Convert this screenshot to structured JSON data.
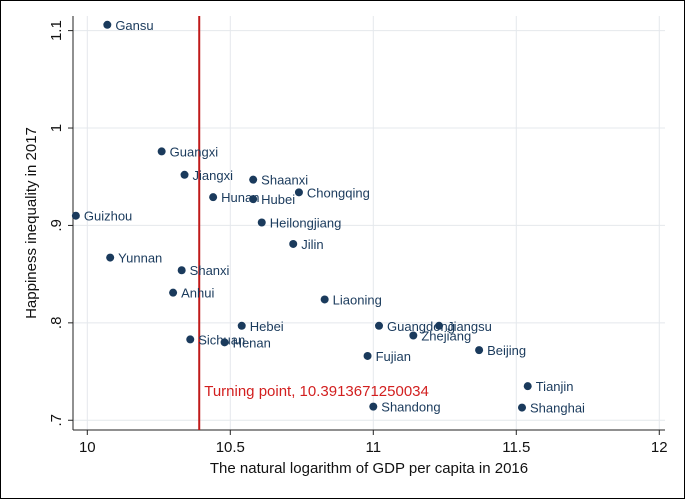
{
  "chart_data": {
    "type": "scatter",
    "title": "",
    "xlabel": "The natural logarithm of GDP per capita in 2016",
    "ylabel": "Happiness inequality in 2017",
    "xlim": [
      9.95,
      12.02
    ],
    "ylim": [
      0.69,
      1.115
    ],
    "xticks": [
      10,
      10.5,
      11,
      11.5,
      12
    ],
    "xtick_labels": [
      "10",
      "10.5",
      "11",
      "11.5",
      "12"
    ],
    "yticks": [
      0.7,
      0.8,
      0.9,
      1.0,
      1.1
    ],
    "ytick_labels": [
      ".7",
      ".8",
      ".9",
      "1",
      "1.1"
    ],
    "grid": true,
    "marker_color": "#1a3a5c",
    "line_color": "#c01a1a",
    "turning_point": {
      "x": 10.3913671250034,
      "label": "Turning point, 10.3913671250034"
    },
    "points": [
      {
        "label": "Gansu",
        "x": 10.07,
        "y": 1.106
      },
      {
        "label": "Guangxi",
        "x": 10.26,
        "y": 0.976
      },
      {
        "label": "Jiangxi",
        "x": 10.34,
        "y": 0.952
      },
      {
        "label": "Shaanxi",
        "x": 10.58,
        "y": 0.947
      },
      {
        "label": "Chongqing",
        "x": 10.74,
        "y": 0.934
      },
      {
        "label": "Hunan",
        "x": 10.44,
        "y": 0.929
      },
      {
        "label": "Hubei",
        "x": 10.58,
        "y": 0.927
      },
      {
        "label": "Guizhou",
        "x": 9.96,
        "y": 0.91
      },
      {
        "label": "Heilongjiang",
        "x": 10.61,
        "y": 0.903
      },
      {
        "label": "Jilin",
        "x": 10.72,
        "y": 0.881
      },
      {
        "label": "Yunnan",
        "x": 10.08,
        "y": 0.867
      },
      {
        "label": "Shanxi",
        "x": 10.33,
        "y": 0.854
      },
      {
        "label": "Anhui",
        "x": 10.3,
        "y": 0.831
      },
      {
        "label": "Liaoning",
        "x": 10.83,
        "y": 0.824
      },
      {
        "label": "Hebei",
        "x": 10.54,
        "y": 0.797
      },
      {
        "label": "Guangdong",
        "x": 11.02,
        "y": 0.797
      },
      {
        "label": "Jiangsu",
        "x": 11.23,
        "y": 0.797
      },
      {
        "label": "Zhejiang",
        "x": 11.14,
        "y": 0.787
      },
      {
        "label": "Sichuan",
        "x": 10.36,
        "y": 0.783
      },
      {
        "label": "Henan",
        "x": 10.48,
        "y": 0.78
      },
      {
        "label": "Beijing",
        "x": 11.37,
        "y": 0.772
      },
      {
        "label": "Fujian",
        "x": 10.98,
        "y": 0.766
      },
      {
        "label": "Tianjin",
        "x": 11.54,
        "y": 0.735
      },
      {
        "label": "Shandong",
        "x": 11.0,
        "y": 0.714
      },
      {
        "label": "Shanghai",
        "x": 11.52,
        "y": 0.713
      }
    ]
  }
}
